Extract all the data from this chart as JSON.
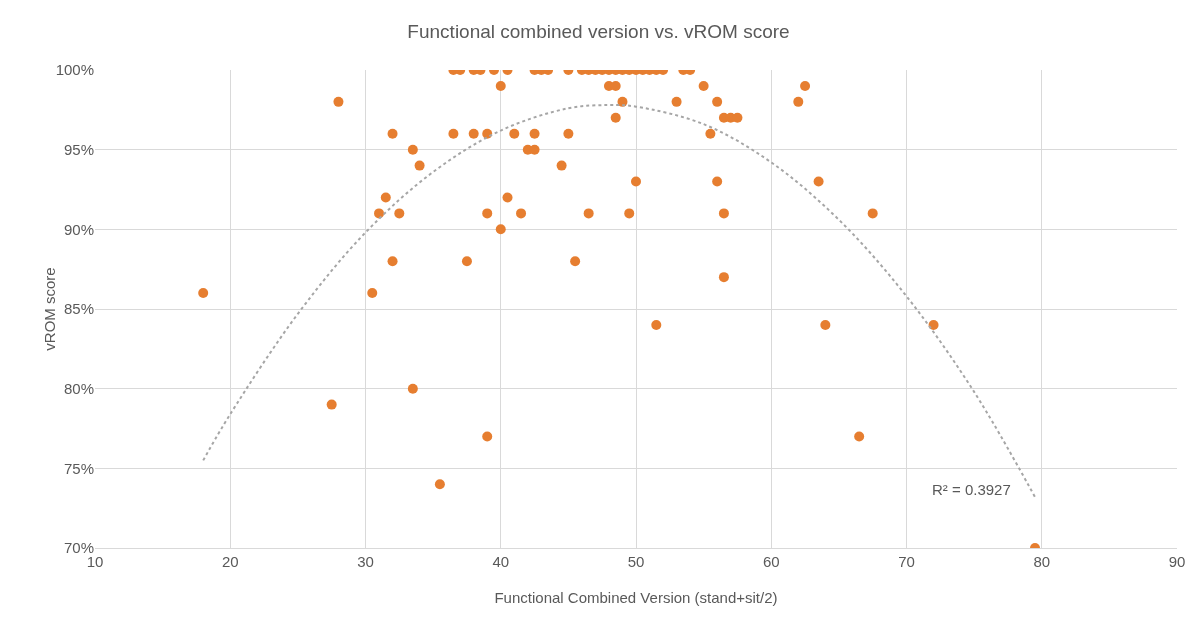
{
  "chart_data": {
    "type": "scatter",
    "title": "Functional combined version vs. vROM score",
    "xlabel": "Functional Combined Version (stand+sit/2)",
    "ylabel": "vROM score",
    "xlim": [
      10,
      90
    ],
    "xticks": [
      10,
      20,
      30,
      40,
      50,
      60,
      70,
      80,
      90
    ],
    "ylim": [
      70,
      100
    ],
    "yticks": [
      {
        "value": 70,
        "label": "70%"
      },
      {
        "value": 75,
        "label": "75%"
      },
      {
        "value": 80,
        "label": "80%"
      },
      {
        "value": 85,
        "label": "85%"
      },
      {
        "value": 90,
        "label": "90%"
      },
      {
        "value": 95,
        "label": "95%"
      },
      {
        "value": 100,
        "label": "100%"
      }
    ],
    "grid": true,
    "marker": "circle",
    "series": [
      {
        "color": "#e67e30",
        "x": [
          18,
          27.5,
          28,
          30.5,
          31,
          31.5,
          32,
          32,
          32.5,
          33.5,
          33.5,
          34,
          35.5,
          36.5,
          36.5,
          37,
          37.5,
          38,
          38,
          38.5,
          39,
          39,
          39,
          39.5,
          40,
          40,
          40.5,
          40.5,
          41,
          41.5,
          42,
          42.5,
          42.5,
          42.5,
          43,
          43.5,
          44.5,
          45,
          45,
          45.5,
          46,
          46.5,
          47,
          47.5,
          48,
          48.5,
          49,
          49.5,
          50,
          50.5,
          51,
          51.5,
          52,
          48,
          48.5,
          48.5,
          49,
          49.5,
          50,
          46.5,
          51.5,
          53,
          53.5,
          54,
          55,
          55.5,
          56,
          56,
          56.5,
          56.5,
          56.5,
          57,
          57.5,
          62,
          62.5,
          63.5,
          64,
          66.5,
          67.5,
          72,
          79.5
        ],
        "values": [
          86,
          79,
          98,
          86,
          91,
          92,
          96,
          88,
          91,
          95,
          80,
          94,
          74,
          96,
          100,
          100,
          88,
          100,
          96,
          100,
          91,
          96,
          77,
          100,
          99,
          90,
          92,
          100,
          96,
          91,
          95,
          95,
          96,
          100,
          100,
          100,
          94,
          96,
          100,
          88,
          100,
          100,
          100,
          100,
          100,
          100,
          100,
          100,
          100,
          100,
          100,
          100,
          100,
          99,
          99,
          97,
          98,
          91,
          93,
          91,
          84,
          98,
          100,
          100,
          99,
          96,
          98,
          93,
          97,
          91,
          87,
          97,
          97,
          98,
          99,
          93,
          84,
          77,
          91,
          84,
          70
        ]
      },
      {
        "type": "line",
        "color": "#a6a6a6",
        "line_style": "dotted",
        "marker": "none",
        "x": [
          18,
          20,
          25,
          30,
          35,
          40,
          45,
          48,
          50,
          55,
          60,
          65,
          70,
          75,
          79.5
        ],
        "values": [
          75.5,
          78.4,
          84.7,
          89.8,
          93.6,
          96.2,
          97.6,
          97.8,
          97.7,
          96.6,
          94.2,
          90.6,
          85.8,
          79.8,
          73.2
        ]
      }
    ],
    "annotations": [
      "R² = 0.3927"
    ]
  }
}
